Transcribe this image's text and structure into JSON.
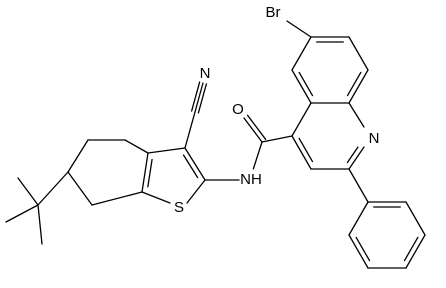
{
  "labels": [
    "Br",
    "N",
    "O",
    "NH",
    "S",
    "N"
  ]
}
